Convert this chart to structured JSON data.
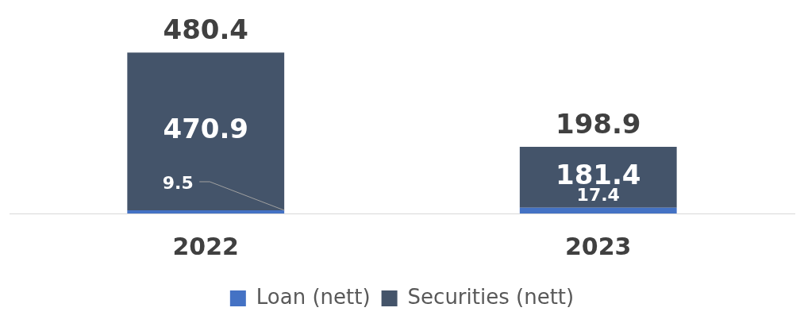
{
  "chart_data": {
    "type": "bar",
    "stacked": true,
    "categories": [
      "2022",
      "2023"
    ],
    "series": [
      {
        "name": "Loan (nett)",
        "color": "#4472c4",
        "values": [
          9.5,
          17.4
        ]
      },
      {
        "name": "Securities (nett)",
        "color": "#44546a",
        "values": [
          470.9,
          181.4
        ]
      }
    ],
    "data_labels": true,
    "totals": [
      "480.4",
      "198.9"
    ],
    "legend": "bottom"
  }
}
